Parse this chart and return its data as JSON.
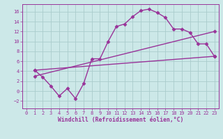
{
  "background_color": "#cce8e8",
  "grid_color": "#aacccc",
  "line_color": "#993399",
  "marker": "D",
  "markersize": 2.5,
  "linewidth": 1.0,
  "xlim": [
    -0.5,
    23.5
  ],
  "ylim": [
    -3.5,
    17.5
  ],
  "xticks": [
    0,
    1,
    2,
    3,
    4,
    5,
    6,
    7,
    8,
    9,
    10,
    11,
    12,
    13,
    14,
    15,
    16,
    17,
    18,
    19,
    20,
    21,
    22,
    23
  ],
  "yticks": [
    -2,
    0,
    2,
    4,
    6,
    8,
    10,
    12,
    14,
    16
  ],
  "xlabel": "Windchill (Refroidissement éolien,°C)",
  "xlabel_fontsize": 5.8,
  "tick_fontsize": 5.0,
  "line1_x": [
    1,
    2,
    3,
    4,
    5,
    6,
    7,
    8,
    9,
    10,
    11,
    12,
    13,
    14,
    15,
    16,
    17,
    18,
    19,
    20,
    21,
    22,
    23
  ],
  "line1_y": [
    4.2,
    2.8,
    1.0,
    -1.0,
    0.5,
    -1.5,
    1.5,
    6.5,
    6.5,
    10.0,
    13.0,
    13.5,
    15.0,
    16.2,
    16.5,
    15.8,
    14.8,
    12.5,
    12.5,
    11.8,
    9.5,
    9.5,
    7.0
  ],
  "line2_x": [
    1,
    23
  ],
  "line2_y": [
    4.2,
    7.0
  ],
  "line3_x": [
    1,
    23
  ],
  "line3_y": [
    3.0,
    12.0
  ]
}
